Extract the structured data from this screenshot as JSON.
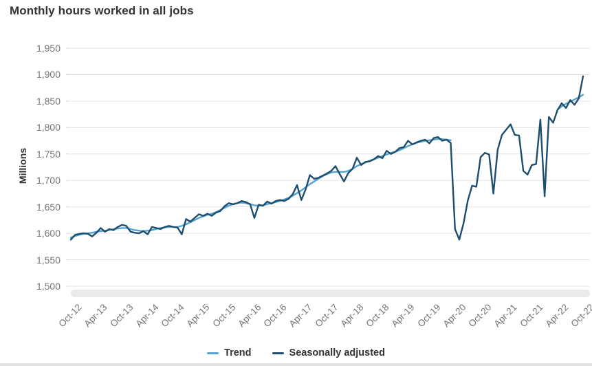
{
  "colors": {
    "background": "#ffffff",
    "title_text": "#333333",
    "axis_text": "#757575",
    "gridline": "#e4e4e4",
    "tick_mark": "#d8d8d8",
    "scrollbar_track": "#eaeaea",
    "trend_line": "#56a3d2",
    "seasonally_adjusted_line": "#1d4e6d"
  },
  "chart_data": {
    "type": "line",
    "title": "Monthly hours worked in all jobs",
    "xlabel": "",
    "ylabel": "Millions",
    "ylim": [
      1500,
      1950
    ],
    "y_ticks": [
      1500,
      1550,
      1600,
      1650,
      1700,
      1750,
      1800,
      1850,
      1900,
      1950
    ],
    "grid": "horizontal",
    "legend_position": "bottom",
    "x_start": "Oct-12",
    "x_end": "Oct-22",
    "points_monthly": 121,
    "x_tick_every_months": 6,
    "x_tick_labels": [
      "Oct-12",
      "Apr-13",
      "Oct-13",
      "Apr-14",
      "Oct-14",
      "Apr-15",
      "Oct-15",
      "Apr-16",
      "Oct-16",
      "Apr-17",
      "Oct-17",
      "Apr-18",
      "Oct-18",
      "Apr-19",
      "Oct-19",
      "Apr-20",
      "Oct-20",
      "Apr-21",
      "Oct-21",
      "Apr-22",
      "Oct-22"
    ],
    "series": [
      {
        "name": "Trend",
        "color": "#56a3d2",
        "note": "suspended Apr-2020 to Mar-2022 (nulls)",
        "values": [
          1592,
          1595,
          1597,
          1599,
          1600,
          1601,
          1603,
          1604,
          1605,
          1606,
          1608,
          1609,
          1610,
          1610,
          1608,
          1606,
          1605,
          1604,
          1605,
          1606,
          1608,
          1610,
          1611,
          1612,
          1612,
          1612,
          1614,
          1617,
          1621,
          1625,
          1629,
          1632,
          1635,
          1637,
          1640,
          1644,
          1648,
          1652,
          1655,
          1657,
          1658,
          1657,
          1655,
          1653,
          1652,
          1653,
          1655,
          1657,
          1659,
          1661,
          1664,
          1667,
          1671,
          1676,
          1681,
          1687,
          1693,
          1698,
          1703,
          1708,
          1712,
          1715,
          1716,
          1716,
          1716,
          1718,
          1722,
          1727,
          1731,
          1734,
          1737,
          1740,
          1743,
          1746,
          1749,
          1752,
          1754,
          1757,
          1761,
          1765,
          1768,
          1771,
          1773,
          1775,
          1776,
          1777,
          1778,
          1778,
          1777,
          1776,
          null,
          null,
          null,
          null,
          null,
          null,
          null,
          null,
          null,
          null,
          null,
          null,
          null,
          null,
          null,
          null,
          null,
          null,
          null,
          null,
          null,
          null,
          null,
          null,
          1834,
          1840,
          1845,
          1849,
          1853,
          1857,
          1862
        ]
      },
      {
        "name": "Seasonally adjusted",
        "color": "#1d4e6d",
        "values": [
          1588,
          1597,
          1599,
          1600,
          1599,
          1594,
          1601,
          1610,
          1603,
          1608,
          1606,
          1612,
          1616,
          1614,
          1603,
          1601,
          1600,
          1604,
          1598,
          1612,
          1610,
          1608,
          1612,
          1614,
          1612,
          1611,
          1598,
          1627,
          1622,
          1629,
          1636,
          1633,
          1637,
          1633,
          1639,
          1642,
          1651,
          1657,
          1655,
          1657,
          1661,
          1659,
          1655,
          1629,
          1654,
          1652,
          1660,
          1656,
          1661,
          1663,
          1661,
          1665,
          1674,
          1691,
          1663,
          1683,
          1710,
          1703,
          1705,
          1709,
          1713,
          1718,
          1727,
          1712,
          1698,
          1714,
          1722,
          1743,
          1729,
          1735,
          1736,
          1740,
          1746,
          1742,
          1756,
          1750,
          1754,
          1761,
          1763,
          1775,
          1768,
          1772,
          1775,
          1777,
          1770,
          1780,
          1782,
          1775,
          1777,
          1771,
          1608,
          1588,
          1619,
          1662,
          1690,
          1688,
          1744,
          1752,
          1749,
          1675,
          1758,
          1786,
          1796,
          1806,
          1786,
          1785,
          1718,
          1711,
          1729,
          1731,
          1815,
          1670,
          1820,
          1809,
          1833,
          1846,
          1837,
          1852,
          1843,
          1855,
          1897
        ]
      }
    ]
  },
  "legend": {
    "items": [
      {
        "label": "Trend"
      },
      {
        "label": "Seasonally adjusted"
      }
    ]
  }
}
